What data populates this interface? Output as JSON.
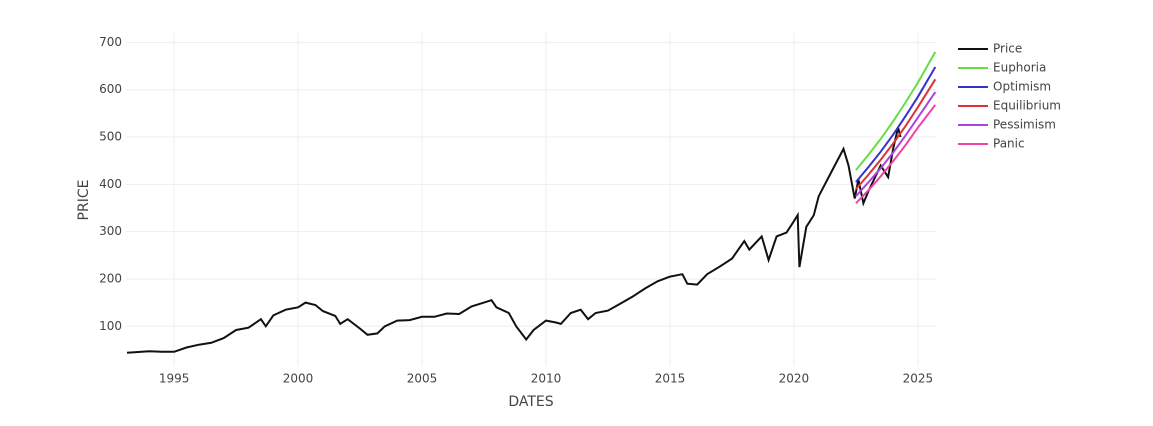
{
  "chart_data": {
    "type": "line",
    "x_label": "DATES",
    "y_label": "PRICE",
    "xlim": [
      1993.06,
      2025.73
    ],
    "ylim": [
      16,
      722
    ],
    "xticks": [
      1995,
      2000,
      2005,
      2010,
      2015,
      2020,
      2025
    ],
    "yticks": [
      100,
      200,
      300,
      400,
      500,
      600,
      700
    ],
    "grid": true,
    "legend": "outside-right",
    "series": [
      {
        "name": "Price",
        "color": "#111111",
        "x": [
          1993.1,
          1994,
          1994.5,
          1995,
          1995.5,
          1996,
          1996.5,
          1997,
          1997.5,
          1998,
          1998.5,
          1998.7,
          1999,
          1999.5,
          2000,
          2000.3,
          2000.7,
          2001,
          2001.5,
          2001.7,
          2002,
          2002.5,
          2002.8,
          2003.2,
          2003.5,
          2004,
          2004.5,
          2005,
          2005.5,
          2006,
          2006.5,
          2007,
          2007.5,
          2007.8,
          2008,
          2008.5,
          2008.8,
          2009.2,
          2009.5,
          2010,
          2010.4,
          2010.6,
          2011,
          2011.4,
          2011.7,
          2012,
          2012.5,
          2013,
          2013.5,
          2014,
          2014.5,
          2015,
          2015.5,
          2015.7,
          2016.1,
          2016.5,
          2017,
          2017.5,
          2018,
          2018.2,
          2018.7,
          2018.98,
          2019.3,
          2019.7,
          2020,
          2020.15,
          2020.22,
          2020.5,
          2020.8,
          2021,
          2021.5,
          2021.9,
          2022,
          2022.2,
          2022.45,
          2022.6,
          2022.8,
          2023,
          2023.5,
          2023.8,
          2024,
          2024.2,
          2024.3
        ],
        "values": [
          44,
          47,
          46,
          46,
          55,
          61,
          65,
          75,
          92,
          97,
          115,
          100,
          123,
          135,
          140,
          150,
          145,
          132,
          122,
          105,
          115,
          95,
          82,
          85,
          100,
          112,
          113,
          120,
          120,
          127,
          126,
          142,
          150,
          155,
          140,
          128,
          100,
          72,
          92,
          112,
          108,
          105,
          128,
          135,
          115,
          128,
          133,
          148,
          163,
          180,
          195,
          205,
          210,
          190,
          188,
          210,
          226,
          243,
          280,
          262,
          290,
          240,
          290,
          298,
          322,
          335,
          225,
          310,
          335,
          375,
          425,
          465,
          475,
          440,
          370,
          410,
          360,
          385,
          440,
          415,
          475,
          520,
          500
        ]
      },
      {
        "name": "Euphoria",
        "color": "#66dd44",
        "x": [
          2022.5,
          2023,
          2023.5,
          2024,
          2024.5,
          2025,
          2025.7
        ],
        "values": [
          430,
          462,
          496,
          533,
          573,
          615,
          680
        ]
      },
      {
        "name": "Optimism",
        "color": "#3333cc",
        "x": [
          2022.5,
          2023,
          2023.5,
          2024,
          2024.5,
          2025,
          2025.7
        ],
        "values": [
          405,
          436,
          469,
          505,
          544,
          585,
          648
        ]
      },
      {
        "name": "Equilibrium",
        "color": "#dd3333",
        "x": [
          2022.5,
          2023,
          2023.5,
          2024,
          2024.5,
          2025,
          2025.7
        ],
        "values": [
          390,
          420,
          452,
          486,
          523,
          563,
          622
        ]
      },
      {
        "name": "Pessimism",
        "color": "#aa44dd",
        "x": [
          2022.5,
          2023,
          2023.5,
          2024,
          2024.5,
          2025,
          2025.7
        ],
        "values": [
          375,
          404,
          434,
          467,
          503,
          541,
          595
        ]
      },
      {
        "name": "Panic",
        "color": "#ee44aa",
        "x": [
          2022.5,
          2023,
          2023.5,
          2024,
          2024.5,
          2025,
          2025.7
        ],
        "values": [
          360,
          387,
          417,
          449,
          483,
          520,
          568
        ]
      }
    ]
  }
}
